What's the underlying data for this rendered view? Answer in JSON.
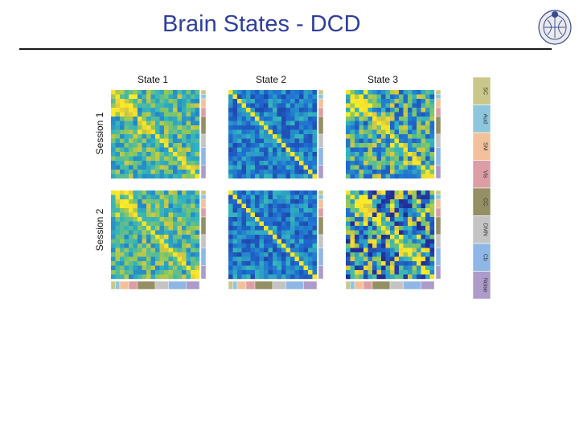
{
  "slide": {
    "title": "Brain States - DCD"
  },
  "figure": {
    "columns": [
      "State 1",
      "State 2",
      "State 3"
    ],
    "rows": [
      "Session 1",
      "Session 2"
    ],
    "networks": [
      {
        "label": "SC",
        "color": "#c9c889"
      },
      {
        "label": "Aud",
        "color": "#8ec6dd"
      },
      {
        "label": "SM",
        "color": "#f2c19b"
      },
      {
        "label": "Vis",
        "color": "#dc9ea4"
      },
      {
        "label": "CC",
        "color": "#948f64"
      },
      {
        "label": "DMN",
        "color": "#c4c4c4"
      },
      {
        "label": "Cb",
        "color": "#8fb7e6"
      },
      {
        "label": "Noise",
        "color": "#ad9bc9"
      }
    ]
  },
  "logo": {
    "icon": "university-seal-icon"
  }
}
